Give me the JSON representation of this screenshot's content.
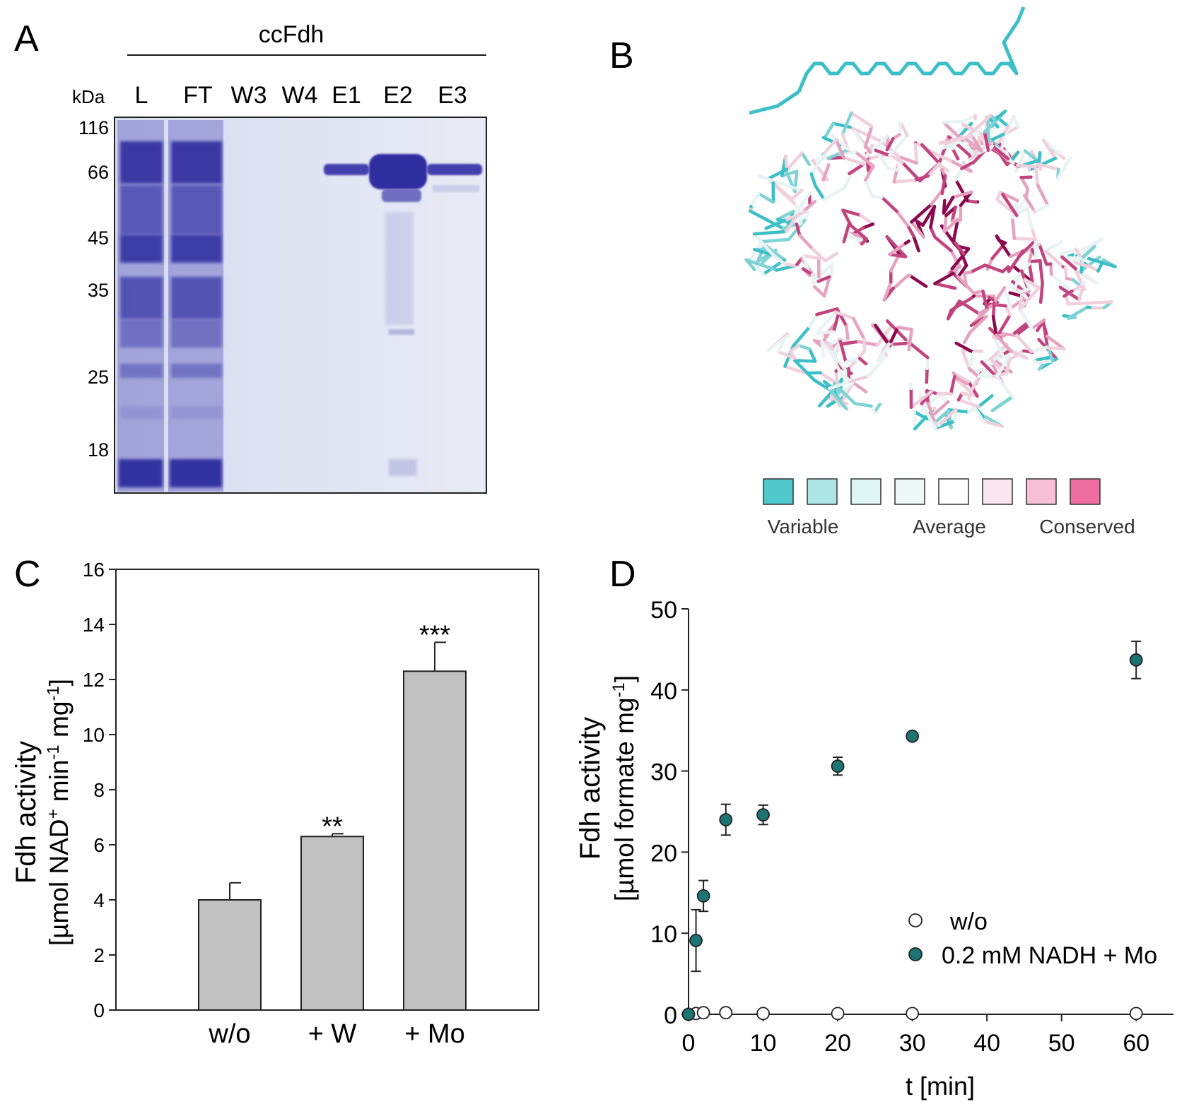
{
  "panel_a": {
    "label": "A",
    "header": "ccFdh",
    "unit": "kDa",
    "lanes": [
      "L",
      "FT",
      "W3",
      "W4",
      "E1",
      "E2",
      "E3"
    ],
    "markers": [
      "116",
      "66",
      "45",
      "35",
      "25",
      "18"
    ],
    "colors": {
      "gel_bg": "#e3e6f3",
      "band": "#3b3aa8"
    }
  },
  "panel_b": {
    "label": "B",
    "legend_colors": [
      "#4fc8cc",
      "#aee6e6",
      "#dff4f4",
      "#eef8f8",
      "#ffffff",
      "#fae6ef",
      "#f7bfd4",
      "#ee6ea2"
    ],
    "legend_labels": {
      "variable": "Variable",
      "average": "Average",
      "conserved": "Conserved"
    },
    "colors": {
      "variable": "#3cbfc7",
      "conserved": "#8b0a4f",
      "average": "#f0d0dc"
    }
  },
  "panel_c": {
    "label": "C",
    "ylabel_line1": "Fdh activity",
    "ylabel_line2_parts": [
      "[µmol NAD",
      "+",
      " min",
      "-1",
      " mg",
      "-1",
      "]"
    ]
  },
  "panel_d": {
    "label": "D",
    "ylabel_line1": "Fdh activity",
    "ylabel_line2_parts": [
      "[µmol formate mg",
      "-1",
      "]"
    ]
  },
  "chart_data": [
    {
      "type": "bar",
      "panel": "C",
      "categories": [
        "w/o",
        "+ W",
        "+ Mo"
      ],
      "values": [
        4.0,
        6.3,
        12.3
      ],
      "errors": [
        0.62,
        0.1,
        1.05
      ],
      "significance": [
        "",
        "**",
        "***"
      ],
      "ylim": [
        0,
        16
      ],
      "yticks": [
        "0",
        "2",
        "4",
        "6",
        "8",
        "10",
        "12",
        "14",
        "16"
      ],
      "bar_color": "#c0c0c0",
      "xlabel": "",
      "ylabel": "Fdh activity [µmol NAD+ min-1 mg-1]"
    },
    {
      "type": "scatter",
      "panel": "D",
      "xlabel": "t [min]",
      "ylabel": "Fdh activity [µmol formate mg-1]",
      "xlim": [
        0,
        65
      ],
      "ylim": [
        0,
        50
      ],
      "xticks": [
        "0",
        "10",
        "20",
        "30",
        "40",
        "50",
        "60"
      ],
      "yticks": [
        "0",
        "10",
        "20",
        "30",
        "40",
        "50"
      ],
      "legend_position": "bottom-right",
      "series": [
        {
          "name": "w/o",
          "marker": "open",
          "color": "#ffffff",
          "x": [
            0,
            1,
            2,
            5,
            10,
            20,
            30,
            60
          ],
          "y": [
            0,
            0.1,
            0.2,
            0.2,
            0.1,
            0.1,
            0.1,
            0.1
          ],
          "err": [
            0,
            0,
            0,
            0,
            0,
            0,
            0,
            0
          ]
        },
        {
          "name": "0.2 mM NADH + Mo",
          "marker": "filled",
          "color": "#1d7474",
          "x": [
            0,
            1,
            2,
            5,
            10,
            20,
            30,
            60
          ],
          "y": [
            0,
            9.1,
            14.6,
            24.0,
            24.6,
            30.6,
            34.3,
            43.7
          ],
          "err": [
            0,
            3.8,
            1.9,
            1.9,
            1.2,
            1.1,
            0.4,
            2.3
          ]
        }
      ]
    }
  ]
}
